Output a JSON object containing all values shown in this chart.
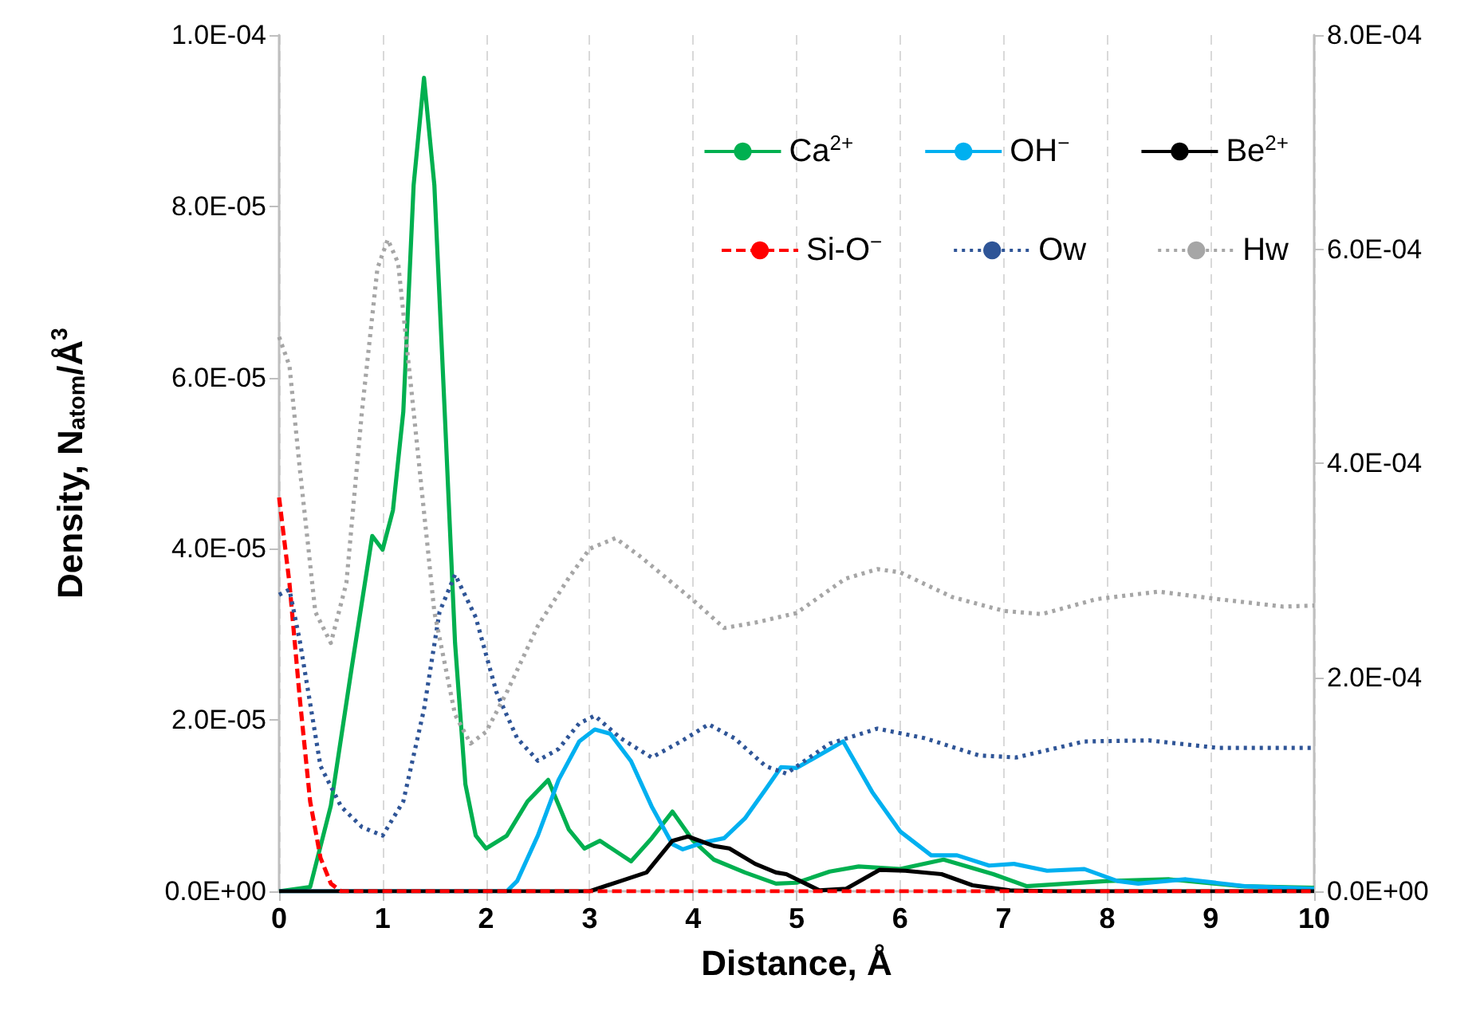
{
  "chart_data": {
    "type": "line",
    "xlabel": "Distance, Å",
    "ylabel": "Density, N$_{atom}$/Å$^{3}$",
    "xlim": [
      0,
      10
    ],
    "xticks": [
      0,
      1,
      2,
      3,
      4,
      5,
      6,
      7,
      8,
      9,
      10
    ],
    "ylim": [
      0,
      0.0001
    ],
    "yticks": [
      {
        "value": 0,
        "label": "0.0E+00"
      },
      {
        "value": 2e-05,
        "label": "2.0E-05"
      },
      {
        "value": 4e-05,
        "label": "4.0E-05"
      },
      {
        "value": 6e-05,
        "label": "6.0E-05"
      },
      {
        "value": 8e-05,
        "label": "8.0E-05"
      },
      {
        "value": 0.0001,
        "label": "1.0E-04"
      }
    ],
    "y2lim": [
      0,
      0.0008
    ],
    "y2ticks": [
      {
        "value": 0,
        "label": "0.0E+00"
      },
      {
        "value": 0.0002,
        "label": "2.0E-04"
      },
      {
        "value": 0.0004,
        "label": "4.0E-04"
      },
      {
        "value": 0.0006,
        "label": "6.0E-04"
      },
      {
        "value": 0.0008,
        "label": "8.0E-04"
      }
    ],
    "grid": "x",
    "legend": "top right",
    "marker": "none",
    "series": [
      {
        "name": "Ca$^{2+}$",
        "color": "#00b050",
        "line_style": "solid",
        "x": [
          0,
          0.3,
          0.5,
          0.7,
          0.9,
          1.0,
          1.1,
          1.2,
          1.3,
          1.4,
          1.5,
          1.6,
          1.7,
          1.8,
          1.9,
          2.0,
          2.2,
          2.4,
          2.6,
          2.8,
          2.95,
          3.1,
          3.4,
          3.6,
          3.8,
          4.0,
          4.2,
          4.5,
          4.8,
          5.0,
          5.32,
          5.6,
          6.0,
          6.42,
          6.9,
          7.22,
          8.0,
          8.6,
          9.3,
          10
        ],
        "values": [
          0,
          5e-07,
          1e-05,
          2.6e-05,
          4.15e-05,
          3.99e-05,
          4.45e-05,
          5.6e-05,
          8.25e-05,
          9.5e-05,
          8.25e-05,
          5.6e-05,
          2.9e-05,
          1.25e-05,
          6.5e-06,
          5e-06,
          6.5e-06,
          1.05e-05,
          1.3e-05,
          7.2e-06,
          5e-06,
          5.9e-06,
          3.5e-06,
          6.2e-06,
          9.3e-06,
          5.9e-06,
          3.7e-06,
          2.2e-06,
          9e-07,
          1e-06,
          2.3e-06,
          2.9e-06,
          2.6e-06,
          3.7e-06,
          2e-06,
          6e-07,
          1.2e-06,
          1.4e-06,
          6e-07,
          4e-07
        ]
      },
      {
        "name": "OH$^{−}$",
        "color": "#00b0f0",
        "line_style": "solid",
        "x": [
          0,
          2.2,
          2.3,
          2.5,
          2.7,
          2.9,
          3.05,
          3.2,
          3.4,
          3.6,
          3.8,
          3.9,
          4.1,
          4.3,
          4.5,
          4.7,
          4.85,
          5.0,
          5.32,
          5.45,
          5.73,
          6.0,
          6.3,
          6.55,
          6.86,
          7.1,
          7.42,
          7.78,
          8.1,
          8.3,
          8.76,
          9.33,
          10
        ],
        "values": [
          0,
          0,
          1.2e-06,
          6.5e-06,
          1.3e-05,
          1.75e-05,
          1.89e-05,
          1.84e-05,
          1.52e-05,
          9.9e-06,
          5.5e-06,
          4.9e-06,
          5.7e-06,
          6.2e-06,
          8.5e-06,
          1.19e-05,
          1.45e-05,
          1.44e-05,
          1.66e-05,
          1.75e-05,
          1.16e-05,
          7e-06,
          4.2e-06,
          4.2e-06,
          3e-06,
          3.2e-06,
          2.4e-06,
          2.6e-06,
          1.2e-06,
          9e-07,
          1.4e-06,
          6e-07,
          3e-07
        ]
      },
      {
        "name": "Be$^{2+}$",
        "color": "#000000",
        "line_style": "solid",
        "x": [
          0,
          3.0,
          3.3,
          3.55,
          3.8,
          3.95,
          4.2,
          4.35,
          4.6,
          4.8,
          4.9,
          5.22,
          5.48,
          5.8,
          6.05,
          6.4,
          6.7,
          7.06,
          7.5,
          10
        ],
        "values": [
          0,
          0,
          1.2e-06,
          2.2e-06,
          5.9e-06,
          6.4e-06,
          5.3e-06,
          5e-06,
          3.2e-06,
          2.2e-06,
          2e-06,
          1e-07,
          3e-07,
          2.5e-06,
          2.4e-06,
          2e-06,
          7e-07,
          1e-07,
          0,
          0
        ]
      },
      {
        "name": "Si-O$^{−}$",
        "color": "#ff0000",
        "line_style": "dashed",
        "x": [
          0,
          0.1,
          0.2,
          0.3,
          0.4,
          0.5,
          0.6,
          1.0,
          10
        ],
        "values": [
          4.6e-05,
          3.6e-05,
          2.25e-05,
          1.05e-05,
          3.9e-06,
          9e-07,
          0,
          0,
          0
        ]
      },
      {
        "name": "Ow",
        "color": "#2f5597",
        "line_style": "dotted",
        "axis": "y2",
        "x": [
          0,
          0.1,
          0.2,
          0.4,
          0.6,
          0.8,
          1.0,
          1.2,
          1.4,
          1.55,
          1.7,
          1.9,
          2.1,
          2.3,
          2.5,
          2.7,
          2.9,
          3.05,
          3.3,
          3.6,
          3.9,
          4.15,
          4.4,
          4.7,
          4.9,
          5.32,
          5.78,
          6.24,
          6.76,
          7.12,
          7.78,
          8.4,
          9.07,
          10
        ],
        "values": [
          0.000277,
          0.000282,
          0.000234,
          0.000117,
          7.9e-05,
          6e-05,
          5.2e-05,
          8.4e-05,
          0.00017,
          0.000261,
          0.000296,
          0.000256,
          0.000186,
          0.000143,
          0.000122,
          0.000133,
          0.000157,
          0.000164,
          0.000143,
          0.000125,
          0.000141,
          0.000156,
          0.000143,
          0.000117,
          0.00011,
          0.000138,
          0.000152,
          0.000143,
          0.000127,
          0.000125,
          0.00014,
          0.000141,
          0.000134,
          0.000134
        ]
      },
      {
        "name": "Hw",
        "color": "#a6a6a6",
        "line_style": "dotted",
        "axis": "y2",
        "x": [
          0,
          0.1,
          0.2,
          0.35,
          0.5,
          0.65,
          0.8,
          0.95,
          1.05,
          1.15,
          1.3,
          1.5,
          1.7,
          1.85,
          2.0,
          2.2,
          2.5,
          2.8,
          3.0,
          3.25,
          3.5,
          3.8,
          4.0,
          4.3,
          4.6,
          5.0,
          5.47,
          5.78,
          6.0,
          6.5,
          7.0,
          7.37,
          7.9,
          8.5,
          9.07,
          9.7,
          10
        ],
        "values": [
          0.000518,
          0.000491,
          0.000395,
          0.000261,
          0.000232,
          0.000288,
          0.000448,
          0.000582,
          0.000609,
          0.000587,
          0.000448,
          0.000261,
          0.000165,
          0.000138,
          0.000149,
          0.000186,
          0.000248,
          0.000293,
          0.00032,
          0.00033,
          0.000312,
          0.000288,
          0.000272,
          0.000246,
          0.000251,
          0.00026,
          0.000292,
          0.000301,
          0.000298,
          0.000275,
          0.000262,
          0.000259,
          0.000273,
          0.00028,
          0.000273,
          0.000266,
          0.000267
        ]
      }
    ]
  }
}
